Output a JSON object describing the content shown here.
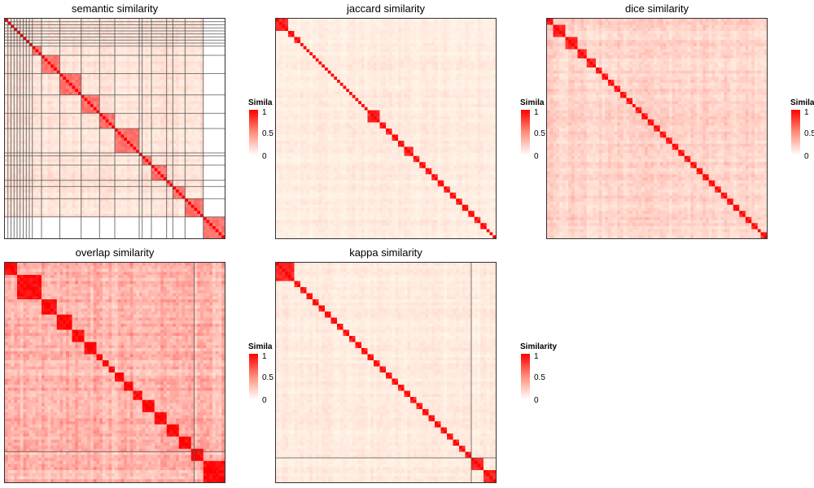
{
  "panels": [
    {
      "title": "semantic similarity",
      "blocks": [
        [
          0,
          1
        ],
        [
          1,
          2
        ],
        [
          2,
          3
        ],
        [
          3,
          4
        ],
        [
          4,
          5
        ],
        [
          5,
          6
        ],
        [
          6,
          7
        ],
        [
          7,
          8
        ],
        [
          8,
          9
        ],
        [
          9,
          12
        ],
        [
          12,
          18
        ],
        [
          18,
          25
        ],
        [
          25,
          31
        ],
        [
          31,
          36
        ],
        [
          36,
          44
        ],
        [
          44,
          45
        ],
        [
          45,
          48
        ],
        [
          48,
          53
        ],
        [
          53,
          55
        ],
        [
          55,
          59
        ],
        [
          59,
          65
        ],
        [
          65,
          72
        ]
      ],
      "block_level": 0.55,
      "background": 0.12,
      "empty_bottom_start": 65,
      "grid_lines": true
    },
    {
      "title": "jaccard similarity",
      "blocks": [
        [
          0,
          4
        ],
        [
          4,
          6
        ],
        [
          6,
          8
        ],
        [
          8,
          9
        ],
        [
          9,
          10
        ],
        [
          10,
          11
        ],
        [
          11,
          12
        ],
        [
          12,
          13
        ],
        [
          13,
          14
        ],
        [
          14,
          15
        ],
        [
          15,
          16
        ],
        [
          16,
          17
        ],
        [
          17,
          18
        ],
        [
          18,
          19
        ],
        [
          19,
          20
        ],
        [
          20,
          21
        ],
        [
          21,
          22
        ],
        [
          22,
          23
        ],
        [
          23,
          24
        ],
        [
          24,
          25
        ],
        [
          25,
          26
        ],
        [
          26,
          27
        ],
        [
          27,
          28
        ],
        [
          28,
          29
        ],
        [
          29,
          30
        ],
        [
          30,
          34
        ],
        [
          34,
          36
        ],
        [
          36,
          38
        ],
        [
          38,
          40
        ],
        [
          40,
          42
        ],
        [
          42,
          45
        ],
        [
          45,
          47
        ],
        [
          47,
          49
        ],
        [
          49,
          51
        ],
        [
          51,
          53
        ],
        [
          53,
          55
        ],
        [
          55,
          57
        ],
        [
          57,
          59
        ],
        [
          59,
          61
        ],
        [
          61,
          63
        ],
        [
          63,
          65
        ],
        [
          65,
          67
        ],
        [
          67,
          69
        ],
        [
          69,
          70
        ],
        [
          70,
          71
        ],
        [
          71,
          72
        ]
      ],
      "block_level": 0.85,
      "background": 0.08,
      "empty_bottom_start": 0,
      "grid_lines": false
    },
    {
      "title": "dice similarity",
      "blocks": [
        [
          0,
          2
        ],
        [
          2,
          6
        ],
        [
          6,
          10
        ],
        [
          10,
          13
        ],
        [
          13,
          16
        ],
        [
          16,
          18
        ],
        [
          18,
          20
        ],
        [
          20,
          22
        ],
        [
          22,
          24
        ],
        [
          24,
          26
        ],
        [
          26,
          28
        ],
        [
          28,
          29
        ],
        [
          29,
          31
        ],
        [
          31,
          33
        ],
        [
          33,
          35
        ],
        [
          35,
          37
        ],
        [
          37,
          39
        ],
        [
          39,
          41
        ],
        [
          41,
          43
        ],
        [
          43,
          45
        ],
        [
          45,
          47
        ],
        [
          47,
          49
        ],
        [
          49,
          51
        ],
        [
          51,
          53
        ],
        [
          53,
          55
        ],
        [
          55,
          57
        ],
        [
          57,
          59
        ],
        [
          59,
          61
        ],
        [
          61,
          63
        ],
        [
          63,
          65
        ],
        [
          65,
          67
        ],
        [
          67,
          69
        ],
        [
          69,
          70
        ],
        [
          70,
          72
        ]
      ],
      "block_level": 0.85,
      "background": 0.18,
      "empty_bottom_start": 0,
      "grid_lines": false
    },
    {
      "title": "overlap similarity",
      "blocks": [
        [
          0,
          4
        ],
        [
          4,
          12
        ],
        [
          12,
          17
        ],
        [
          17,
          22
        ],
        [
          22,
          26
        ],
        [
          26,
          30
        ],
        [
          30,
          32
        ],
        [
          32,
          34
        ],
        [
          34,
          36
        ],
        [
          36,
          39
        ],
        [
          39,
          42
        ],
        [
          42,
          45
        ],
        [
          45,
          49
        ],
        [
          49,
          53
        ],
        [
          53,
          57
        ],
        [
          57,
          61
        ],
        [
          61,
          65
        ],
        [
          65,
          72
        ]
      ],
      "block_level": 0.95,
      "background": 0.3,
      "empty_bottom_start": 0,
      "grid_lines": false
    },
    {
      "title": "kappa similarity",
      "blocks": [
        [
          0,
          6
        ],
        [
          6,
          8
        ],
        [
          8,
          10
        ],
        [
          10,
          12
        ],
        [
          12,
          14
        ],
        [
          14,
          16
        ],
        [
          16,
          18
        ],
        [
          18,
          20
        ],
        [
          20,
          22
        ],
        [
          22,
          24
        ],
        [
          24,
          26
        ],
        [
          26,
          28
        ],
        [
          28,
          30
        ],
        [
          30,
          32
        ],
        [
          32,
          34
        ],
        [
          34,
          36
        ],
        [
          36,
          38
        ],
        [
          38,
          40
        ],
        [
          40,
          42
        ],
        [
          42,
          44
        ],
        [
          44,
          46
        ],
        [
          46,
          48
        ],
        [
          48,
          50
        ],
        [
          50,
          52
        ],
        [
          52,
          54
        ],
        [
          54,
          56
        ],
        [
          56,
          58
        ],
        [
          58,
          60
        ],
        [
          60,
          62
        ],
        [
          62,
          64
        ],
        [
          64,
          68
        ],
        [
          68,
          72
        ]
      ],
      "block_level": 0.85,
      "background": 0.08,
      "empty_bottom_start": 0,
      "grid_lines": false
    }
  ],
  "legends": [
    {
      "title": "Simila",
      "ticks": [
        "1",
        "0.5",
        "0"
      ]
    },
    {
      "title": "Simila",
      "ticks": [
        "1",
        "0.5",
        "0"
      ]
    },
    {
      "title": "Simila",
      "ticks": [
        "1",
        "0.5",
        "0"
      ]
    },
    {
      "title": "Simila",
      "ticks": [
        "1",
        "0.5",
        "0"
      ]
    },
    {
      "title": "Similarity",
      "ticks": [
        "1",
        "0.5",
        "0"
      ]
    }
  ],
  "colors": {
    "high": "#ff0000",
    "mid": "#ff8f7a",
    "low": "#ffffff",
    "border": "#333333"
  },
  "chart_data": [
    {
      "type": "heatmap",
      "title": "semantic similarity",
      "n_terms": 72,
      "value_range": [
        0,
        1
      ],
      "legend_title": "Similarity",
      "color_scale": [
        "#ffffff",
        "#ff0000"
      ]
    },
    {
      "type": "heatmap",
      "title": "jaccard similarity",
      "n_terms": 72,
      "value_range": [
        0,
        1
      ],
      "legend_title": "Similarity",
      "color_scale": [
        "#ffffff",
        "#ff0000"
      ]
    },
    {
      "type": "heatmap",
      "title": "dice similarity",
      "n_terms": 72,
      "value_range": [
        0,
        1
      ],
      "legend_title": "Similarity",
      "color_scale": [
        "#ffffff",
        "#ff0000"
      ]
    },
    {
      "type": "heatmap",
      "title": "overlap similarity",
      "n_terms": 72,
      "value_range": [
        0,
        1
      ],
      "legend_title": "Similarity",
      "color_scale": [
        "#ffffff",
        "#ff0000"
      ]
    },
    {
      "type": "heatmap",
      "title": "kappa similarity",
      "n_terms": 72,
      "value_range": [
        0,
        1
      ],
      "legend_title": "Similarity",
      "color_scale": [
        "#ffffff",
        "#ff0000"
      ]
    }
  ]
}
